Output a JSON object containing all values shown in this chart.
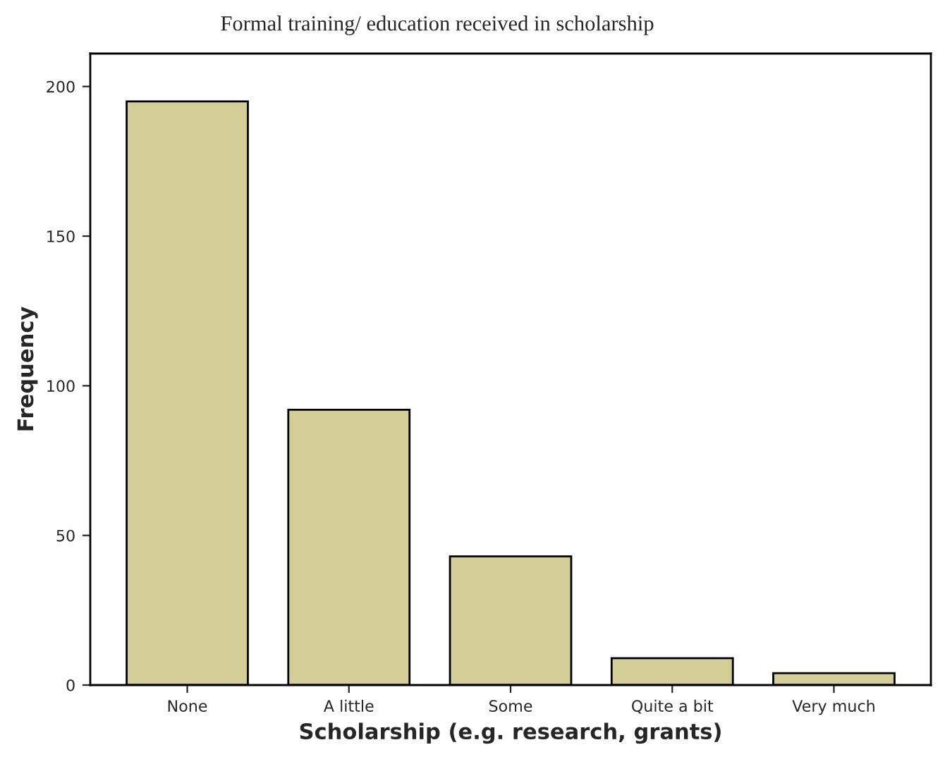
{
  "chart_data": {
    "type": "bar",
    "title": "Formal training/ education received in scholarship",
    "xlabel": "Scholarship (e.g. research, grants)",
    "ylabel": "Frequency",
    "categories": [
      "None",
      "A little",
      "Some",
      "Quite a bit",
      "Very much"
    ],
    "values": [
      195,
      92,
      43,
      9,
      4
    ],
    "color": "#d3ce97",
    "ylim": [
      0,
      211
    ],
    "yticks": [
      0,
      50,
      100,
      150,
      200
    ],
    "grid": false,
    "legend": false
  }
}
